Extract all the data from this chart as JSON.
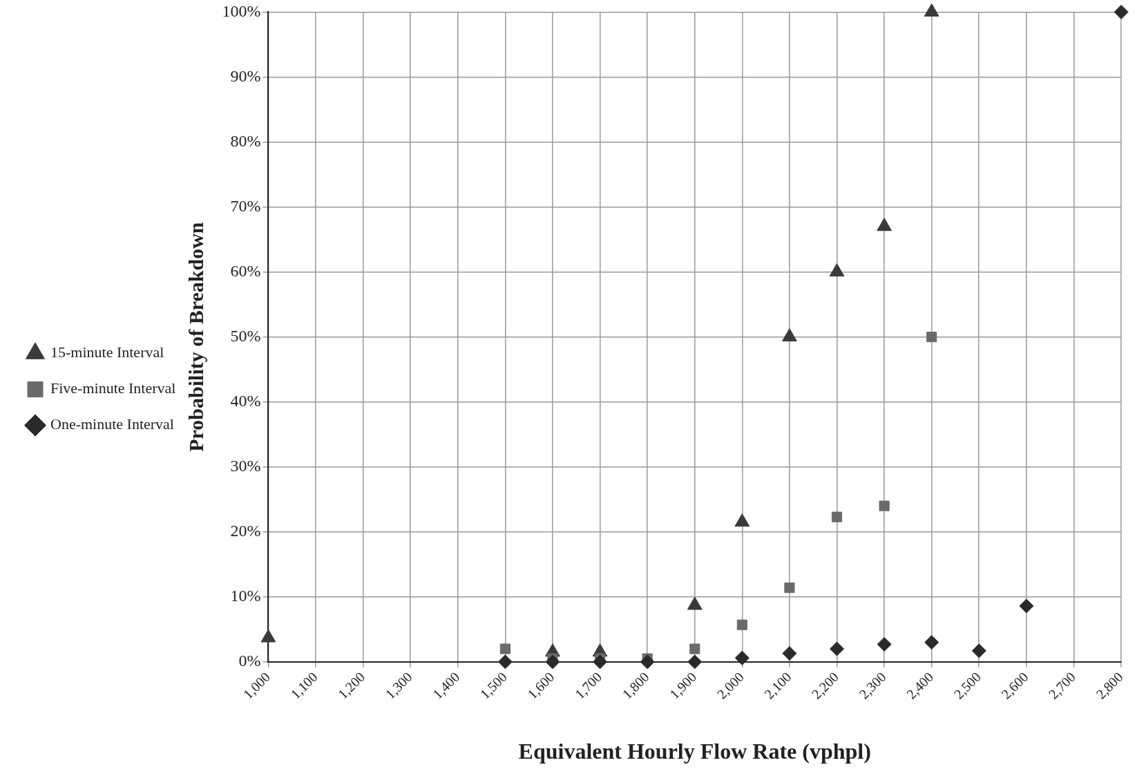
{
  "chart_data": {
    "type": "scatter",
    "xlabel": "Equivalent Hourly Flow Rate (vphpl)",
    "ylabel": "Probability of Breakdown",
    "series": [
      {
        "name": "One-minute Interval",
        "color": "#2a2a2a",
        "marker": "diamond",
        "x": [
          1500,
          1600,
          1700,
          1800,
          1900,
          2000,
          2100,
          2200,
          2300,
          2400,
          2500,
          2600,
          2800
        ],
        "values": [
          0,
          0,
          0,
          0,
          0,
          0.6,
          1.3,
          2,
          2.7,
          3,
          1.7,
          8.6,
          100
        ]
      },
      {
        "name": "Five-minute Interval",
        "color": "#6a6a6a",
        "marker": "square",
        "x": [
          1500,
          1600,
          1700,
          1800,
          1900,
          2000,
          2100,
          2200,
          2300,
          2400
        ],
        "values": [
          2,
          0.5,
          0.5,
          0.5,
          2,
          5.7,
          11.4,
          22.3,
          24,
          50
        ]
      },
      {
        "name": "15-minute Interval",
        "color": "#3a3a3a",
        "marker": "triangle",
        "x": [
          1000,
          1600,
          1700,
          1900,
          2000,
          2100,
          2200,
          2300,
          2400
        ],
        "values": [
          3.7,
          1.5,
          1.5,
          8.7,
          21.5,
          50,
          60,
          67,
          100
        ]
      }
    ],
    "xlim": [
      1000,
      2800
    ],
    "xticks": [
      {
        "value": 1000,
        "label": "1,000"
      },
      {
        "value": 1100,
        "label": "1,100"
      },
      {
        "value": 1200,
        "label": "1,200"
      },
      {
        "value": 1300,
        "label": "1,300"
      },
      {
        "value": 1400,
        "label": "1,400"
      },
      {
        "value": 1500,
        "label": "1,500"
      },
      {
        "value": 1600,
        "label": "1,600"
      },
      {
        "value": 1700,
        "label": "1,700"
      },
      {
        "value": 1800,
        "label": "1,800"
      },
      {
        "value": 1900,
        "label": "1,900"
      },
      {
        "value": 2000,
        "label": "2,000"
      },
      {
        "value": 2100,
        "label": "2,100"
      },
      {
        "value": 2200,
        "label": "2,200"
      },
      {
        "value": 2300,
        "label": "2,300"
      },
      {
        "value": 2400,
        "label": "2,400"
      },
      {
        "value": 2500,
        "label": "2,500"
      },
      {
        "value": 2600,
        "label": "2,600"
      },
      {
        "value": 2700,
        "label": "2,700"
      },
      {
        "value": 2800,
        "label": "2,800"
      }
    ],
    "ylim": [
      0,
      100
    ],
    "yticks": [
      {
        "value": 0,
        "label": "0%"
      },
      {
        "value": 10,
        "label": "10%"
      },
      {
        "value": 20,
        "label": "20%"
      },
      {
        "value": 30,
        "label": "30%"
      },
      {
        "value": 40,
        "label": "40%"
      },
      {
        "value": 50,
        "label": "50%"
      },
      {
        "value": 60,
        "label": "60%"
      },
      {
        "value": 70,
        "label": "70%"
      },
      {
        "value": 80,
        "label": "80%"
      },
      {
        "value": 90,
        "label": "90%"
      },
      {
        "value": 100,
        "label": "100%"
      }
    ],
    "grid": true,
    "legend": "left"
  }
}
